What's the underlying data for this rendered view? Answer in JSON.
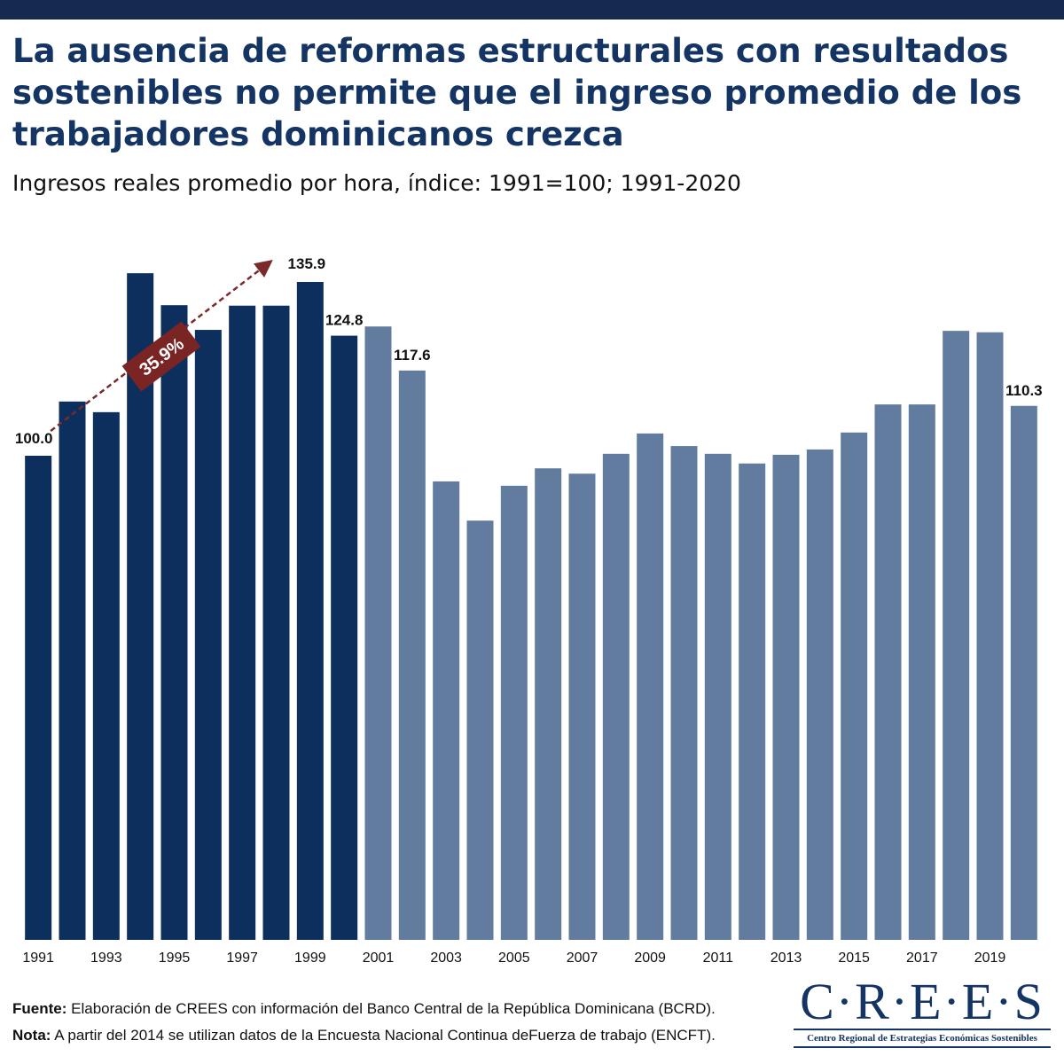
{
  "chart_data": {
    "type": "bar",
    "title": "La ausencia de reformas estructurales con resultados sostenibles no permite que el ingreso promedio de los trabajadores dominicanos crezca",
    "subtitle": "Ingresos reales promedio por hora, índice: 1991=100; 1991-2020",
    "categories": [
      "1991",
      null,
      "1993",
      null,
      "1995",
      null,
      "1997",
      null,
      "1999",
      null,
      "2001",
      null,
      "2003",
      null,
      "2005",
      null,
      "2007",
      null,
      "2009",
      null,
      "2011",
      null,
      "2013",
      null,
      "2015",
      null,
      "2017",
      null,
      "2019",
      null
    ],
    "values": [
      100.0,
      111.2,
      109.0,
      137.7,
      131.1,
      126.0,
      131.0,
      131.0,
      135.9,
      124.8,
      126.7,
      117.6,
      94.7,
      86.6,
      93.8,
      97.4,
      96.3,
      100.4,
      104.6,
      102.0,
      100.4,
      98.4,
      100.2,
      101.3,
      104.8,
      110.6,
      110.6,
      125.8,
      125.5,
      110.3
    ],
    "value_labels": [
      "100.0",
      null,
      null,
      null,
      null,
      null,
      null,
      null,
      "135.9",
      "124.8",
      null,
      "117.6",
      null,
      null,
      null,
      null,
      null,
      null,
      null,
      null,
      null,
      null,
      null,
      null,
      null,
      null,
      null,
      null,
      null,
      "110.3"
    ],
    "colors": [
      "#0d2f5e",
      "#0d2f5e",
      "#0d2f5e",
      "#0d2f5e",
      "#0d2f5e",
      "#0d2f5e",
      "#0d2f5e",
      "#0d2f5e",
      "#0d2f5e",
      "#0d2f5e",
      "#627ca0",
      "#627ca0",
      "#627ca0",
      "#627ca0",
      "#627ca0",
      "#627ca0",
      "#627ca0",
      "#627ca0",
      "#627ca0",
      "#627ca0",
      "#627ca0",
      "#627ca0",
      "#627ca0",
      "#627ca0",
      "#627ca0",
      "#627ca0",
      "#627ca0",
      "#627ca0",
      "#627ca0",
      "#627ca0"
    ],
    "ylim": [
      0,
      150
    ],
    "annotation": "35.9%"
  },
  "footer": {
    "source_label": "Fuente:",
    "source_text": "Elaboración de CREES con información del Banco Central de la República Dominicana (BCRD).",
    "note_label": "Nota:",
    "note_text": "A partir del 2014 se utilizan datos de la Encuesta Nacional Continua deFuerza de trabajo (ENCFT)."
  },
  "logo": {
    "name": "C·R·E·E·S",
    "subtitle": "Centro Regional de Estrategias Económicas Sostenibles"
  }
}
